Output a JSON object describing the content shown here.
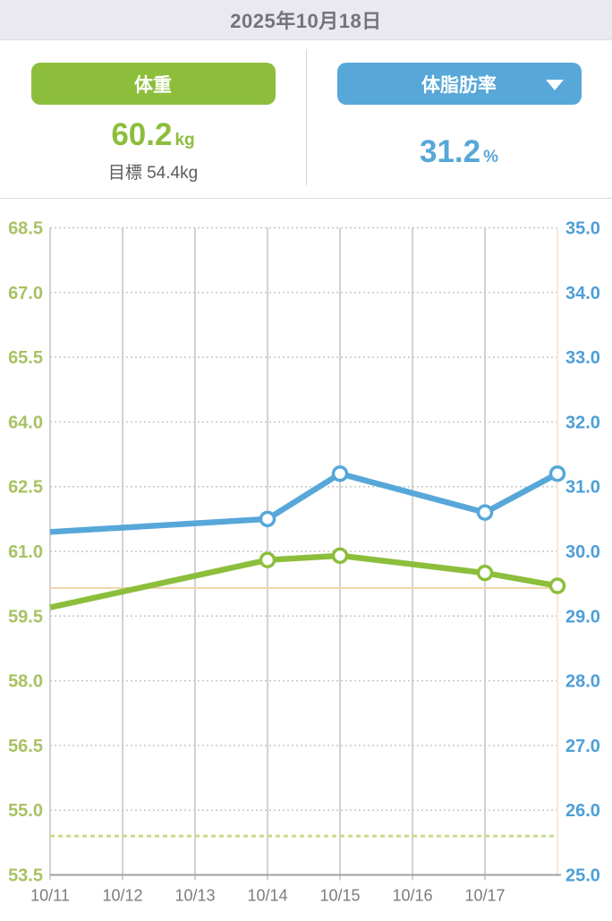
{
  "header": {
    "date": "2025年10月18日"
  },
  "metrics": {
    "weight": {
      "button_label": "体重",
      "value": "60.2",
      "unit": "kg",
      "goal_text": "目標 54.4kg",
      "accent_color": "#8cbe3c"
    },
    "body_fat": {
      "button_label": "体脂肪率",
      "value": "31.2",
      "unit": "%",
      "accent_color": "#57a7d9",
      "dropdown_caret": "caret-down"
    }
  },
  "chart_data": {
    "type": "line",
    "x_tick_labels": [
      "10/11",
      "10/12",
      "10/13",
      "10/14",
      "10/15",
      "10/16",
      "10/17"
    ],
    "x_slots": 8,
    "x_label_color": "#7b7c80",
    "left_axis": {
      "name": "weight-kg",
      "min": 53.5,
      "max": 68.5,
      "tick_step": 1.5,
      "ticks": [
        "68.5",
        "67.0",
        "65.5",
        "64.0",
        "62.5",
        "61.0",
        "59.5",
        "58.0",
        "56.5",
        "55.0",
        "53.5"
      ],
      "color": "#a9c263"
    },
    "right_axis": {
      "name": "body-fat-percent",
      "min": 25.0,
      "max": 35.0,
      "tick_step": 1.0,
      "ticks": [
        "35.0",
        "34.0",
        "33.0",
        "32.0",
        "31.0",
        "30.0",
        "29.0",
        "28.0",
        "27.0",
        "26.0",
        "25.0"
      ],
      "color": "#4d9fd8"
    },
    "series": [
      {
        "name": "weight",
        "axis": "left",
        "color": "#8cbe3c",
        "points": [
          {
            "slot": 0,
            "date": "10/11",
            "value": 59.7,
            "marker": false
          },
          {
            "slot": 3,
            "date": "10/14",
            "value": 60.8,
            "marker": true
          },
          {
            "slot": 4,
            "date": "10/15",
            "value": 60.9,
            "marker": true
          },
          {
            "slot": 6,
            "date": "10/17",
            "value": 60.5,
            "marker": true
          },
          {
            "slot": 7,
            "date": "10/18",
            "value": 60.2,
            "marker": true
          }
        ]
      },
      {
        "name": "body_fat",
        "axis": "right",
        "color": "#57a7d9",
        "points": [
          {
            "slot": 0,
            "date": "10/11",
            "value": 30.3,
            "marker": false
          },
          {
            "slot": 3,
            "date": "10/14",
            "value": 30.5,
            "marker": true
          },
          {
            "slot": 4,
            "date": "10/15",
            "value": 31.2,
            "marker": true
          },
          {
            "slot": 6,
            "date": "10/17",
            "value": 30.6,
            "marker": true
          },
          {
            "slot": 7,
            "date": "10/18",
            "value": 31.2,
            "marker": true
          }
        ]
      }
    ],
    "reference_lines": [
      {
        "name": "latest-weight-line",
        "orient": "horizontal",
        "axis": "left",
        "value": 60.15,
        "color": "#f2d4ad",
        "dash": null,
        "width": 2
      },
      {
        "name": "goal-weight-line",
        "orient": "horizontal",
        "axis": "left",
        "value": 54.4,
        "color": "#c8db8e",
        "dash": "5 4",
        "width": 3
      },
      {
        "name": "today-line",
        "orient": "vertical",
        "slot": 7,
        "color": "#f8e8d6",
        "dash": null,
        "width": 2
      }
    ],
    "grid": {
      "h_color": "#c6c6c6",
      "v_color": "#c4c4c6",
      "axis_color": "#a0a0a3",
      "legend": "none"
    }
  }
}
